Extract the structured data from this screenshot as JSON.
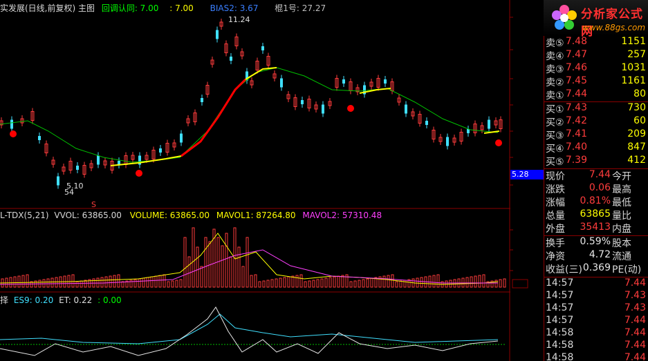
{
  "header": {
    "title": "实发展(日线,前复权) 主图",
    "ma_label": "回调认同: 7.00",
    "ma2_label": ": 7.00",
    "bias_label": "BIAS2: 3.67",
    "info_label": "棍1号: 27.27"
  },
  "price_annotations": {
    "high_label": "11.24",
    "low_label": "5.10",
    "low2_label": "54",
    "s_marker": "S"
  },
  "volume_header": {
    "name": "L-TDX(5,21)",
    "vvol": "VVOL: 63865.00",
    "volume": "VOLUME: 63865.00",
    "mavol1": "MAVOL1: 87264.80",
    "mavol2": "MAVOL2: 57310.48"
  },
  "indicator_header": {
    "name": "择",
    "es": "ES9: 0.20",
    "et": "ET: 0.22",
    "c": ": 0.00"
  },
  "blue_price_tag": "5.28",
  "logo": {
    "title": "分析家公式网",
    "url": "www.88gs.com"
  },
  "sell_orders": [
    {
      "label": "卖⑤",
      "price": "7.48",
      "vol": "1151"
    },
    {
      "label": "卖④",
      "price": "7.47",
      "vol": "257"
    },
    {
      "label": "卖③",
      "price": "7.46",
      "vol": "1031"
    },
    {
      "label": "卖②",
      "price": "7.45",
      "vol": "1161"
    },
    {
      "label": "卖①",
      "price": "7.44",
      "vol": "80"
    }
  ],
  "buy_orders": [
    {
      "label": "买①",
      "price": "7.43",
      "vol": "730"
    },
    {
      "label": "买②",
      "price": "7.42",
      "vol": "60"
    },
    {
      "label": "买③",
      "price": "7.41",
      "vol": "209"
    },
    {
      "label": "买④",
      "price": "7.40",
      "vol": "847"
    },
    {
      "label": "买⑤",
      "price": "7.39",
      "vol": "412"
    }
  ],
  "quote": [
    {
      "label": "现价",
      "value": "7.44",
      "label2": "今开"
    },
    {
      "label": "涨跌",
      "value": "0.06",
      "label2": "最高"
    },
    {
      "label": "涨幅",
      "value": "0.81%",
      "label2": "最低"
    },
    {
      "label": "总量",
      "value": "63865",
      "label2": "量比"
    },
    {
      "label": "外盘",
      "value": "35413",
      "label2": "内盘"
    }
  ],
  "fundamentals": [
    {
      "label": "换手",
      "value": "0.59%",
      "label2": "股本"
    },
    {
      "label": "净资",
      "value": "4.72",
      "label2": "流通"
    },
    {
      "label": "收益(三)",
      "value": "0.369",
      "label2": "PE(动)"
    }
  ],
  "ticks": [
    {
      "time": "14:57",
      "price": "7.44"
    },
    {
      "time": "14:57",
      "price": "7.43"
    },
    {
      "time": "14:57",
      "price": "7.43"
    },
    {
      "time": "14:57",
      "price": "7.44"
    },
    {
      "time": "14:58",
      "price": "7.44"
    },
    {
      "time": "14:58",
      "price": "7.44"
    },
    {
      "time": "14:58",
      "price": "7.44"
    }
  ]
}
